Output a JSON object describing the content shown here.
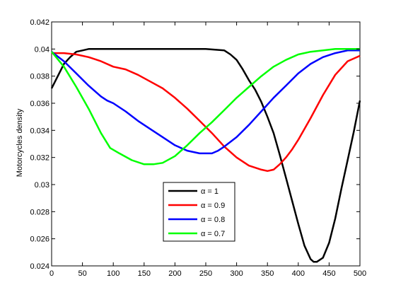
{
  "chart_data": {
    "type": "line",
    "title": "",
    "xlabel": "",
    "ylabel": "Motorcycles density",
    "xlim": [
      0,
      500
    ],
    "ylim": [
      0.024,
      0.042
    ],
    "x_ticks": [
      0,
      50,
      100,
      150,
      200,
      250,
      300,
      350,
      400,
      450,
      500
    ],
    "y_ticks": [
      0.024,
      0.026,
      0.028,
      0.03,
      0.032,
      0.034,
      0.036,
      0.038,
      0.04,
      0.042
    ],
    "x_tick_labels": [
      "0",
      "50",
      "100",
      "150",
      "200",
      "250",
      "300",
      "350",
      "400",
      "450",
      "500"
    ],
    "y_tick_labels": [
      "0.024",
      "0.026",
      "0.028",
      "0.03",
      "0.032",
      "0.034",
      "0.036",
      "0.038",
      "0.04",
      "0.042"
    ],
    "grid": false,
    "legend_position": "lower-center",
    "series": [
      {
        "name": "α = 1",
        "color": "#000000",
        "x": [
          0,
          10,
          20,
          30,
          40,
          50,
          60,
          80,
          100,
          150,
          200,
          250,
          280,
          290,
          300,
          310,
          320,
          330,
          340,
          350,
          360,
          370,
          380,
          390,
          400,
          410,
          420,
          425,
          430,
          440,
          450,
          460,
          470,
          480,
          490,
          500
        ],
        "y": [
          0.0371,
          0.038,
          0.0389,
          0.0394,
          0.0398,
          0.0399,
          0.04,
          0.04,
          0.04,
          0.04,
          0.04,
          0.04,
          0.0399,
          0.0396,
          0.0392,
          0.0385,
          0.0377,
          0.037,
          0.0361,
          0.035,
          0.0338,
          0.0322,
          0.0305,
          0.0288,
          0.0271,
          0.0255,
          0.0245,
          0.0243,
          0.0243,
          0.0246,
          0.0257,
          0.0275,
          0.0297,
          0.0318,
          0.0339,
          0.0362
        ]
      },
      {
        "name": "α = 0.9",
        "color": "#ff0000",
        "x": [
          0,
          20,
          40,
          60,
          80,
          100,
          120,
          140,
          160,
          180,
          200,
          220,
          240,
          260,
          280,
          300,
          320,
          340,
          350,
          360,
          370,
          380,
          390,
          400,
          420,
          440,
          460,
          480,
          500
        ],
        "y": [
          0.0397,
          0.0397,
          0.0396,
          0.0394,
          0.0391,
          0.0387,
          0.0385,
          0.0381,
          0.0376,
          0.0371,
          0.0364,
          0.0356,
          0.0347,
          0.0338,
          0.0328,
          0.032,
          0.0314,
          0.0311,
          0.031,
          0.0311,
          0.0315,
          0.032,
          0.0326,
          0.0333,
          0.0349,
          0.0366,
          0.0381,
          0.0391,
          0.0395
        ]
      },
      {
        "name": "α = 0.8",
        "color": "#0000ff",
        "x": [
          0,
          20,
          40,
          60,
          80,
          90,
          100,
          120,
          140,
          160,
          180,
          200,
          220,
          240,
          250,
          260,
          270,
          280,
          300,
          320,
          340,
          360,
          380,
          400,
          420,
          440,
          460,
          480,
          500
        ],
        "y": [
          0.0398,
          0.0391,
          0.0382,
          0.0373,
          0.0365,
          0.0362,
          0.036,
          0.0354,
          0.0347,
          0.0341,
          0.0335,
          0.0329,
          0.0325,
          0.0323,
          0.0323,
          0.0323,
          0.0325,
          0.0328,
          0.0335,
          0.0344,
          0.0354,
          0.0364,
          0.0373,
          0.0382,
          0.0389,
          0.0394,
          0.0397,
          0.0399,
          0.0399
        ]
      },
      {
        "name": "α = 0.7",
        "color": "#00ff00",
        "x": [
          0,
          20,
          40,
          60,
          80,
          95,
          110,
          130,
          150,
          165,
          180,
          200,
          220,
          240,
          260,
          280,
          300,
          320,
          340,
          360,
          380,
          400,
          420,
          440,
          460,
          480,
          500
        ],
        "y": [
          0.0398,
          0.0387,
          0.0372,
          0.0356,
          0.0338,
          0.0327,
          0.0323,
          0.0318,
          0.0315,
          0.0315,
          0.0316,
          0.0321,
          0.0329,
          0.0338,
          0.0346,
          0.0355,
          0.0364,
          0.0372,
          0.038,
          0.0387,
          0.0392,
          0.0396,
          0.0398,
          0.0399,
          0.04,
          0.04,
          0.04
        ]
      }
    ]
  }
}
